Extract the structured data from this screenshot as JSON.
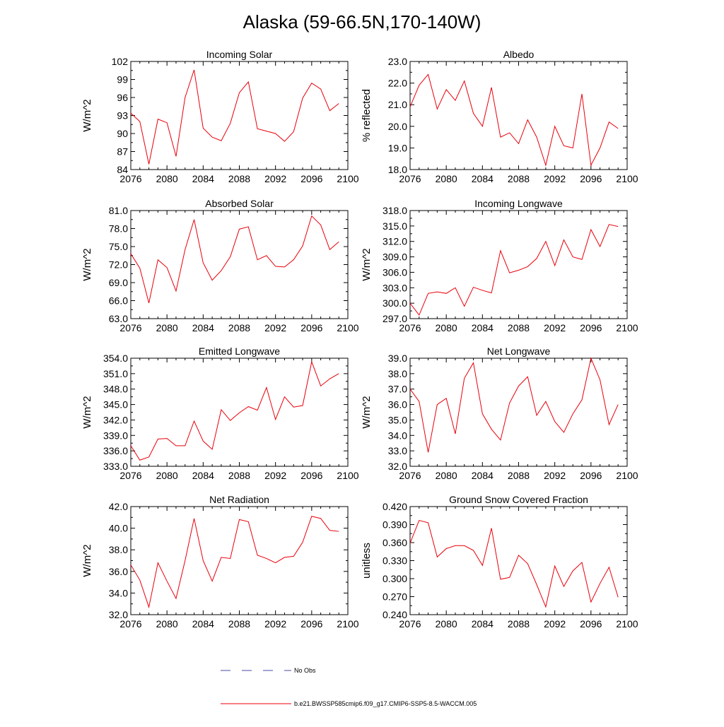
{
  "title": "Alaska (59-66.5N,170-140W)",
  "legend": {
    "obs_label": "No Obs",
    "obs_color": "#4a4aa8",
    "model_label": "b.e21.BWSSP585cmip6.f09_g17.CMIP6-SSP5-8.5-WACCM.005",
    "model_color": "#e8000b"
  },
  "chart_data": [
    {
      "type": "line",
      "title": "Incoming Solar",
      "ylabel": "W/m^2",
      "x": [
        2076,
        2077,
        2078,
        2079,
        2080,
        2081,
        2082,
        2083,
        2084,
        2085,
        2086,
        2087,
        2088,
        2089,
        2090,
        2091,
        2092,
        2093,
        2094,
        2095,
        2096,
        2097,
        2098,
        2099
      ],
      "values": [
        93.4,
        92.0,
        84.9,
        92.4,
        91.8,
        86.2,
        96.0,
        100.6,
        90.9,
        89.4,
        88.8,
        91.7,
        96.8,
        98.6,
        90.8,
        90.4,
        90.0,
        88.7,
        90.3,
        95.9,
        98.4,
        97.4,
        93.8,
        95.0
      ],
      "xlim": [
        2076,
        2100
      ],
      "xticks": [
        "2076",
        "2080",
        "2084",
        "2088",
        "2092",
        "2096",
        "2100"
      ],
      "ylim": [
        84,
        102
      ],
      "yticks": [
        "84",
        "87",
        "90",
        "93",
        "96",
        "99",
        "102"
      ]
    },
    {
      "type": "line",
      "title": "Albedo",
      "ylabel": "% reflected",
      "x": [
        2076,
        2077,
        2078,
        2079,
        2080,
        2081,
        2082,
        2083,
        2084,
        2085,
        2086,
        2087,
        2088,
        2089,
        2090,
        2091,
        2092,
        2093,
        2094,
        2095,
        2096,
        2097,
        2098,
        2099
      ],
      "values": [
        20.9,
        21.9,
        22.4,
        20.8,
        21.7,
        21.2,
        22.1,
        20.6,
        20.0,
        21.8,
        19.5,
        19.7,
        19.2,
        20.3,
        19.5,
        18.2,
        20.0,
        19.1,
        19.0,
        21.5,
        18.2,
        19.0,
        20.2,
        19.9
      ],
      "xlim": [
        2076,
        2100
      ],
      "xticks": [
        "2076",
        "2080",
        "2084",
        "2088",
        "2092",
        "2096",
        "2100"
      ],
      "ylim": [
        18,
        23
      ],
      "yticks": [
        "18.0",
        "19.0",
        "20.0",
        "21.0",
        "22.0",
        "23.0"
      ]
    },
    {
      "type": "line",
      "title": "Absorbed Solar",
      "ylabel": "W/m^2",
      "x": [
        2076,
        2077,
        2078,
        2079,
        2080,
        2081,
        2082,
        2083,
        2084,
        2085,
        2086,
        2087,
        2088,
        2089,
        2090,
        2091,
        2092,
        2093,
        2094,
        2095,
        2096,
        2097,
        2098,
        2099
      ],
      "values": [
        73.8,
        71.4,
        65.6,
        72.8,
        71.5,
        67.6,
        74.5,
        79.5,
        72.3,
        69.4,
        71.0,
        73.3,
        77.9,
        78.3,
        72.8,
        73.5,
        71.7,
        71.6,
        72.8,
        75.1,
        80.1,
        78.6,
        74.5,
        75.8
      ],
      "xlim": [
        2076,
        2100
      ],
      "xticks": [
        "2076",
        "2080",
        "2084",
        "2088",
        "2092",
        "2096",
        "2100"
      ],
      "ylim": [
        63,
        81
      ],
      "yticks": [
        "63.0",
        "66.0",
        "69.0",
        "72.0",
        "75.0",
        "78.0",
        "81.0"
      ]
    },
    {
      "type": "line",
      "title": "Incoming Longwave",
      "ylabel": "W/m^2",
      "x": [
        2076,
        2077,
        2078,
        2079,
        2080,
        2081,
        2082,
        2083,
        2084,
        2085,
        2086,
        2087,
        2088,
        2089,
        2090,
        2091,
        2092,
        2093,
        2094,
        2095,
        2096,
        2097,
        2098,
        2099
      ],
      "values": [
        300.0,
        297.7,
        301.9,
        302.2,
        301.9,
        303.0,
        299.4,
        303.1,
        302.5,
        302.0,
        310.2,
        305.9,
        306.4,
        307.1,
        308.7,
        312.0,
        307.3,
        312.3,
        309.0,
        308.5,
        314.3,
        311.0,
        315.3,
        314.9
      ],
      "xlim": [
        2076,
        2100
      ],
      "xticks": [
        "2076",
        "2080",
        "2084",
        "2088",
        "2092",
        "2096",
        "2100"
      ],
      "ylim": [
        297,
        318
      ],
      "yticks": [
        "297.0",
        "300.0",
        "303.0",
        "306.0",
        "309.0",
        "312.0",
        "315.0",
        "318.0"
      ]
    },
    {
      "type": "line",
      "title": "Emitted Longwave",
      "ylabel": "W/m^2",
      "x": [
        2076,
        2077,
        2078,
        2079,
        2080,
        2081,
        2082,
        2083,
        2084,
        2085,
        2086,
        2087,
        2088,
        2089,
        2090,
        2091,
        2092,
        2093,
        2094,
        2095,
        2096,
        2097,
        2098,
        2099
      ],
      "values": [
        337.0,
        334.2,
        334.8,
        338.3,
        338.4,
        337.0,
        337.0,
        341.8,
        337.9,
        336.3,
        344.0,
        341.9,
        343.4,
        344.6,
        343.9,
        348.3,
        342.1,
        346.5,
        344.5,
        344.8,
        353.3,
        348.6,
        350.0,
        351.0
      ],
      "xlim": [
        2076,
        2100
      ],
      "xticks": [
        "2076",
        "2080",
        "2084",
        "2088",
        "2092",
        "2096",
        "2100"
      ],
      "ylim": [
        333,
        354
      ],
      "yticks": [
        "333.0",
        "336.0",
        "339.0",
        "342.0",
        "345.0",
        "348.0",
        "351.0",
        "354.0"
      ]
    },
    {
      "type": "line",
      "title": "Net Longwave",
      "ylabel": "W/m^2",
      "x": [
        2076,
        2077,
        2078,
        2079,
        2080,
        2081,
        2082,
        2083,
        2084,
        2085,
        2086,
        2087,
        2088,
        2089,
        2090,
        2091,
        2092,
        2093,
        2094,
        2095,
        2096,
        2097,
        2098,
        2099
      ],
      "values": [
        37.0,
        36.2,
        32.9,
        36.0,
        36.4,
        34.1,
        37.7,
        38.7,
        35.4,
        34.4,
        33.7,
        36.1,
        37.2,
        37.8,
        35.3,
        36.2,
        34.9,
        34.2,
        35.4,
        36.3,
        39.0,
        37.6,
        34.7,
        36.0
      ],
      "xlim": [
        2076,
        2100
      ],
      "xticks": [
        "2076",
        "2080",
        "2084",
        "2088",
        "2092",
        "2096",
        "2100"
      ],
      "ylim": [
        32,
        39
      ],
      "yticks": [
        "32.0",
        "33.0",
        "34.0",
        "35.0",
        "36.0",
        "37.0",
        "38.0",
        "39.0"
      ]
    },
    {
      "type": "line",
      "title": "Net Radiation",
      "ylabel": "W/m^2",
      "x": [
        2076,
        2077,
        2078,
        2079,
        2080,
        2081,
        2082,
        2083,
        2084,
        2085,
        2086,
        2087,
        2088,
        2089,
        2090,
        2091,
        2092,
        2093,
        2094,
        2095,
        2096,
        2097,
        2098,
        2099
      ],
      "values": [
        36.6,
        35.2,
        32.7,
        36.8,
        35.1,
        33.5,
        37.0,
        40.9,
        37.0,
        35.1,
        37.3,
        37.2,
        40.8,
        40.6,
        37.5,
        37.2,
        36.8,
        37.3,
        37.4,
        38.7,
        41.1,
        40.9,
        39.8,
        39.7
      ],
      "xlim": [
        2076,
        2100
      ],
      "xticks": [
        "2076",
        "2080",
        "2084",
        "2088",
        "2092",
        "2096",
        "2100"
      ],
      "ylim": [
        32,
        42
      ],
      "yticks": [
        "32.0",
        "34.0",
        "36.0",
        "38.0",
        "40.0",
        "42.0"
      ]
    },
    {
      "type": "line",
      "title": "Ground Snow Covered Fraction",
      "ylabel": "unitless",
      "x": [
        2076,
        2077,
        2078,
        2079,
        2080,
        2081,
        2082,
        2083,
        2084,
        2085,
        2086,
        2087,
        2088,
        2089,
        2090,
        2091,
        2092,
        2093,
        2094,
        2095,
        2096,
        2097,
        2098,
        2099
      ],
      "values": [
        0.359,
        0.397,
        0.393,
        0.336,
        0.35,
        0.355,
        0.355,
        0.347,
        0.322,
        0.384,
        0.299,
        0.302,
        0.339,
        0.325,
        0.29,
        0.253,
        0.321,
        0.287,
        0.313,
        0.327,
        0.261,
        0.292,
        0.319,
        0.269
      ],
      "xlim": [
        2076,
        2100
      ],
      "xticks": [
        "2076",
        "2080",
        "2084",
        "2088",
        "2092",
        "2096",
        "2100"
      ],
      "ylim": [
        0.24,
        0.42
      ],
      "yticks": [
        "0.240",
        "0.270",
        "0.300",
        "0.330",
        "0.360",
        "0.390",
        "0.420"
      ]
    }
  ]
}
